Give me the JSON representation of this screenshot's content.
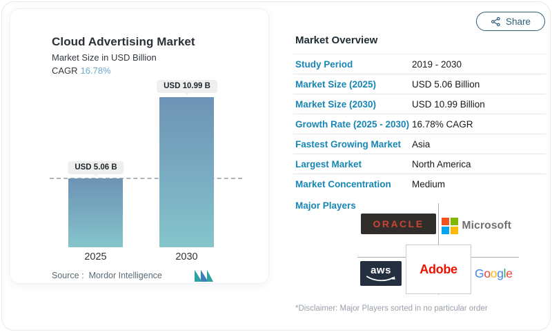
{
  "share": {
    "label": "Share"
  },
  "chart_card": {
    "title": "Cloud Advertising Market",
    "subtitle": "Market Size in USD Billion",
    "cagr_label": "CAGR",
    "cagr_value": "16.78%",
    "source_label": "Source :",
    "source_value": "Mordor Intelligence"
  },
  "chart_data": {
    "type": "bar",
    "title": "Cloud Advertising Market",
    "ylabel": "Market Size in USD Billion",
    "categories": [
      "2025",
      "2030"
    ],
    "values": [
      5.06,
      10.99
    ],
    "value_labels": [
      "USD 5.06 B",
      "USD 10.99 B"
    ],
    "cagr": "16.78%",
    "ylim": [
      0,
      10.99
    ],
    "grid": false,
    "legend": false,
    "reference_line": {
      "at_value": 5.06,
      "style": "dashed",
      "color": "#aab3ba"
    },
    "bar_gradient": [
      "#6e93b5",
      "#85c5cb"
    ]
  },
  "overview": {
    "heading": "Market Overview",
    "rows": [
      {
        "label": "Study Period",
        "value": "2019 - 2030"
      },
      {
        "label": "Market Size (2025)",
        "value": "USD 5.06 Billion"
      },
      {
        "label": "Market Size (2030)",
        "value": "USD 10.99 Billion"
      },
      {
        "label": "Growth Rate (2025 - 2030)",
        "value": "16.78% CAGR"
      },
      {
        "label": "Fastest Growing Market",
        "value": "Asia"
      },
      {
        "label": "Largest Market",
        "value": "North America"
      },
      {
        "label": "Market Concentration",
        "value": "Medium"
      }
    ],
    "major_players_label": "Major Players",
    "disclaimer": "*Disclaimer: Major Players sorted in no particular order"
  },
  "players": {
    "oracle": {
      "name": "Oracle",
      "text": "ORACLE"
    },
    "microsoft": {
      "name": "Microsoft",
      "text": "Microsoft"
    },
    "aws": {
      "name": "AWS",
      "text": "aws"
    },
    "adobe": {
      "name": "Adobe",
      "text": "Adobe"
    },
    "google": {
      "name": "Google",
      "letters": [
        "G",
        "o",
        "o",
        "g",
        "l",
        "e"
      ]
    }
  },
  "icons": {
    "share": "share-nodes-icon",
    "brand": "mordor-intelligence-logo"
  },
  "colors": {
    "accent_label": "#1786b5",
    "cagr_value": "#6ca9cb",
    "share_button": "#2c5e77",
    "bar_gradient_top": "#6e93b5",
    "bar_gradient_bottom": "#85c5cb",
    "oracle_red": "#C74634",
    "aws_navy": "#232F3E",
    "adobe_red": "#EB1000",
    "microsoft_squares": [
      "#F25022",
      "#7FBA00",
      "#00A4EF",
      "#FFB900"
    ],
    "google_letters": [
      "#4285F4",
      "#EA4335",
      "#FBBC05",
      "#4285F4",
      "#34A853",
      "#EA4335"
    ]
  }
}
